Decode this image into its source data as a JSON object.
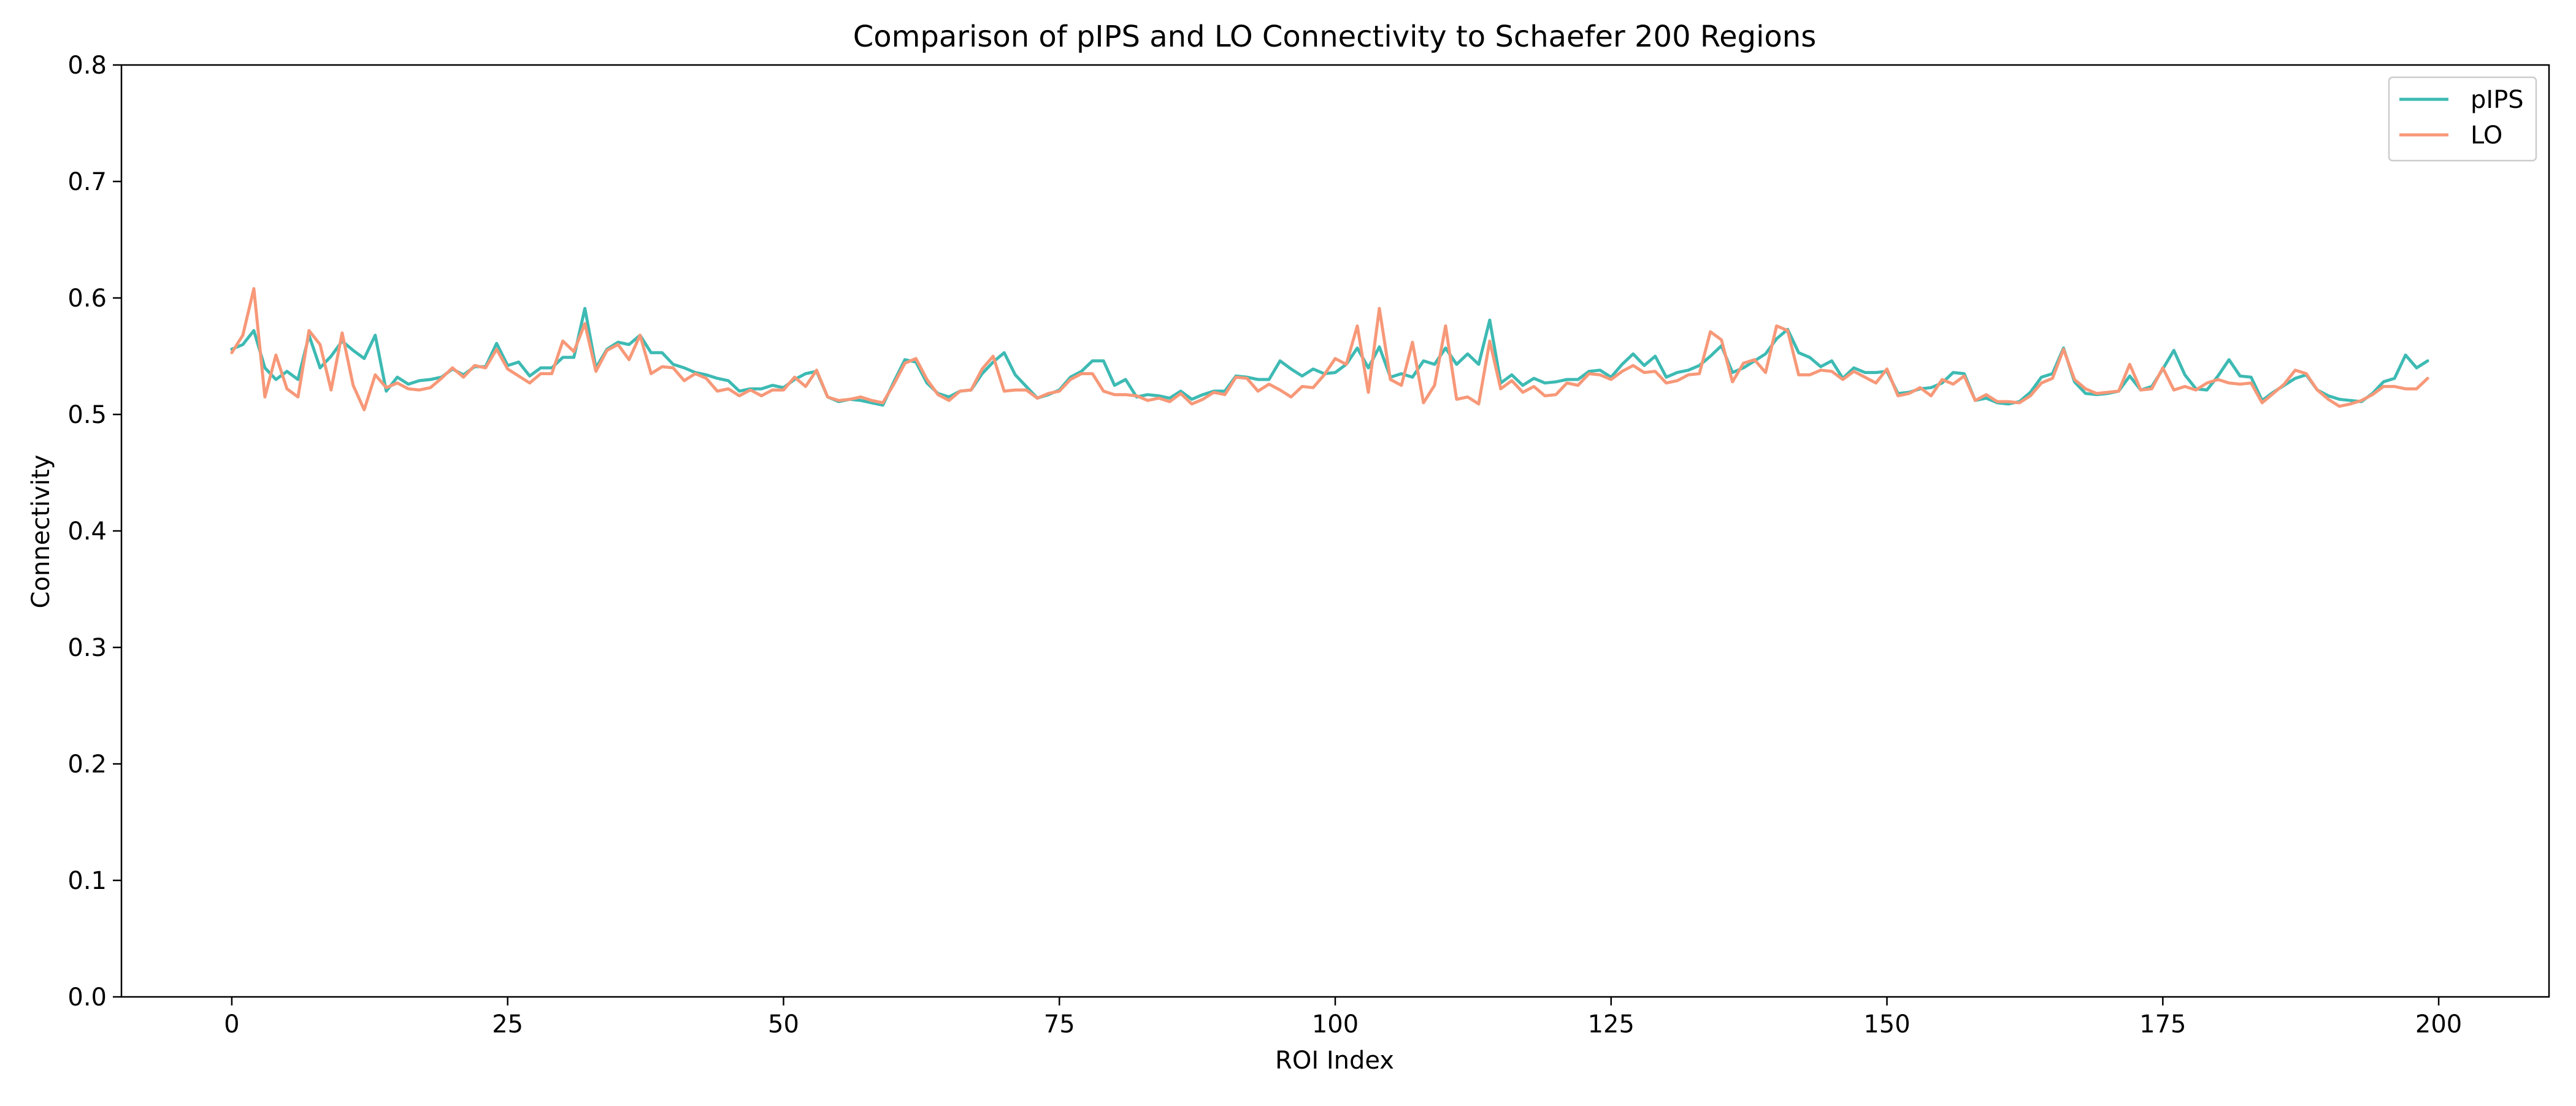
{
  "chart_data": {
    "type": "line",
    "title": "Comparison of pIPS and LO Connectivity to Schaefer 200 Regions",
    "xlabel": "ROI Index",
    "ylabel": "Connectivity",
    "xlim": [
      -10,
      210
    ],
    "ylim": [
      0.0,
      0.8
    ],
    "xticks": [
      0,
      25,
      50,
      75,
      100,
      125,
      150,
      175,
      200
    ],
    "yticks": [
      0.0,
      0.1,
      0.2,
      0.3,
      0.4,
      0.5,
      0.6,
      0.7,
      0.8
    ],
    "grid": false,
    "legend_position": "top-right",
    "series": [
      {
        "name": "pIPS",
        "color": "#3dbab3",
        "values": [
          0.556,
          0.56,
          0.572,
          0.54,
          0.53,
          0.537,
          0.53,
          0.568,
          0.54,
          0.55,
          0.563,
          0.555,
          0.548,
          0.568,
          0.52,
          0.532,
          0.526,
          0.529,
          0.53,
          0.532,
          0.539,
          0.534,
          0.541,
          0.541,
          0.561,
          0.542,
          0.545,
          0.533,
          0.54,
          0.54,
          0.549,
          0.549,
          0.591,
          0.54,
          0.556,
          0.562,
          0.56,
          0.568,
          0.553,
          0.553,
          0.543,
          0.54,
          0.536,
          0.534,
          0.531,
          0.529,
          0.52,
          0.522,
          0.522,
          0.525,
          0.523,
          0.53,
          0.535,
          0.537,
          0.515,
          0.511,
          0.513,
          0.512,
          0.51,
          0.508,
          0.528,
          0.547,
          0.545,
          0.527,
          0.518,
          0.515,
          0.52,
          0.521,
          0.535,
          0.545,
          0.553,
          0.534,
          0.524,
          0.514,
          0.517,
          0.521,
          0.532,
          0.537,
          0.546,
          0.546,
          0.525,
          0.53,
          0.515,
          0.517,
          0.516,
          0.514,
          0.52,
          0.513,
          0.517,
          0.52,
          0.52,
          0.533,
          0.532,
          0.53,
          0.53,
          0.546,
          0.539,
          0.533,
          0.539,
          0.535,
          0.536,
          0.543,
          0.557,
          0.54,
          0.558,
          0.532,
          0.535,
          0.532,
          0.546,
          0.543,
          0.557,
          0.543,
          0.552,
          0.543,
          0.581,
          0.527,
          0.534,
          0.525,
          0.531,
          0.527,
          0.528,
          0.53,
          0.53,
          0.537,
          0.538,
          0.532,
          0.543,
          0.552,
          0.542,
          0.55,
          0.532,
          0.536,
          0.538,
          0.542,
          0.55,
          0.559,
          0.536,
          0.54,
          0.546,
          0.552,
          0.565,
          0.573,
          0.553,
          0.549,
          0.541,
          0.546,
          0.531,
          0.54,
          0.536,
          0.536,
          0.537,
          0.518,
          0.519,
          0.522,
          0.523,
          0.527,
          0.536,
          0.535,
          0.512,
          0.514,
          0.51,
          0.509,
          0.511,
          0.519,
          0.532,
          0.535,
          0.557,
          0.528,
          0.518,
          0.517,
          0.518,
          0.52,
          0.533,
          0.521,
          0.524,
          0.539,
          0.555,
          0.534,
          0.522,
          0.521,
          0.533,
          0.547,
          0.533,
          0.532,
          0.512,
          0.519,
          0.525,
          0.531,
          0.534,
          0.521,
          0.516,
          0.513,
          0.512,
          0.511,
          0.518,
          0.528,
          0.531,
          0.551,
          0.54,
          0.546
        ]
      },
      {
        "name": "LO",
        "color": "#f79878",
        "values": [
          0.553,
          0.568,
          0.608,
          0.515,
          0.551,
          0.522,
          0.515,
          0.572,
          0.56,
          0.521,
          0.57,
          0.525,
          0.504,
          0.534,
          0.523,
          0.527,
          0.522,
          0.521,
          0.523,
          0.531,
          0.54,
          0.532,
          0.542,
          0.54,
          0.556,
          0.539,
          0.533,
          0.527,
          0.535,
          0.535,
          0.563,
          0.554,
          0.578,
          0.537,
          0.555,
          0.56,
          0.547,
          0.568,
          0.535,
          0.541,
          0.54,
          0.529,
          0.535,
          0.531,
          0.52,
          0.522,
          0.516,
          0.521,
          0.516,
          0.521,
          0.521,
          0.532,
          0.524,
          0.538,
          0.515,
          0.512,
          0.513,
          0.515,
          0.512,
          0.51,
          0.526,
          0.544,
          0.548,
          0.53,
          0.517,
          0.512,
          0.52,
          0.521,
          0.539,
          0.55,
          0.52,
          0.521,
          0.521,
          0.514,
          0.518,
          0.52,
          0.53,
          0.535,
          0.535,
          0.52,
          0.517,
          0.517,
          0.516,
          0.512,
          0.514,
          0.511,
          0.518,
          0.509,
          0.513,
          0.519,
          0.517,
          0.532,
          0.531,
          0.52,
          0.526,
          0.521,
          0.515,
          0.524,
          0.523,
          0.534,
          0.548,
          0.543,
          0.576,
          0.519,
          0.591,
          0.53,
          0.525,
          0.562,
          0.51,
          0.525,
          0.576,
          0.513,
          0.515,
          0.509,
          0.563,
          0.522,
          0.529,
          0.519,
          0.524,
          0.516,
          0.517,
          0.527,
          0.525,
          0.535,
          0.534,
          0.53,
          0.537,
          0.542,
          0.536,
          0.537,
          0.527,
          0.529,
          0.534,
          0.535,
          0.571,
          0.564,
          0.528,
          0.544,
          0.547,
          0.536,
          0.576,
          0.572,
          0.534,
          0.534,
          0.538,
          0.537,
          0.53,
          0.537,
          0.532,
          0.527,
          0.539,
          0.516,
          0.518,
          0.523,
          0.516,
          0.53,
          0.526,
          0.533,
          0.512,
          0.517,
          0.511,
          0.511,
          0.51,
          0.516,
          0.527,
          0.531,
          0.556,
          0.53,
          0.522,
          0.518,
          0.519,
          0.52,
          0.543,
          0.521,
          0.522,
          0.54,
          0.521,
          0.524,
          0.521,
          0.527,
          0.53,
          0.527,
          0.526,
          0.527,
          0.51,
          0.518,
          0.526,
          0.538,
          0.535,
          0.521,
          0.513,
          0.507,
          0.509,
          0.512,
          0.517,
          0.524,
          0.524,
          0.522,
          0.522,
          0.531
        ]
      }
    ]
  }
}
